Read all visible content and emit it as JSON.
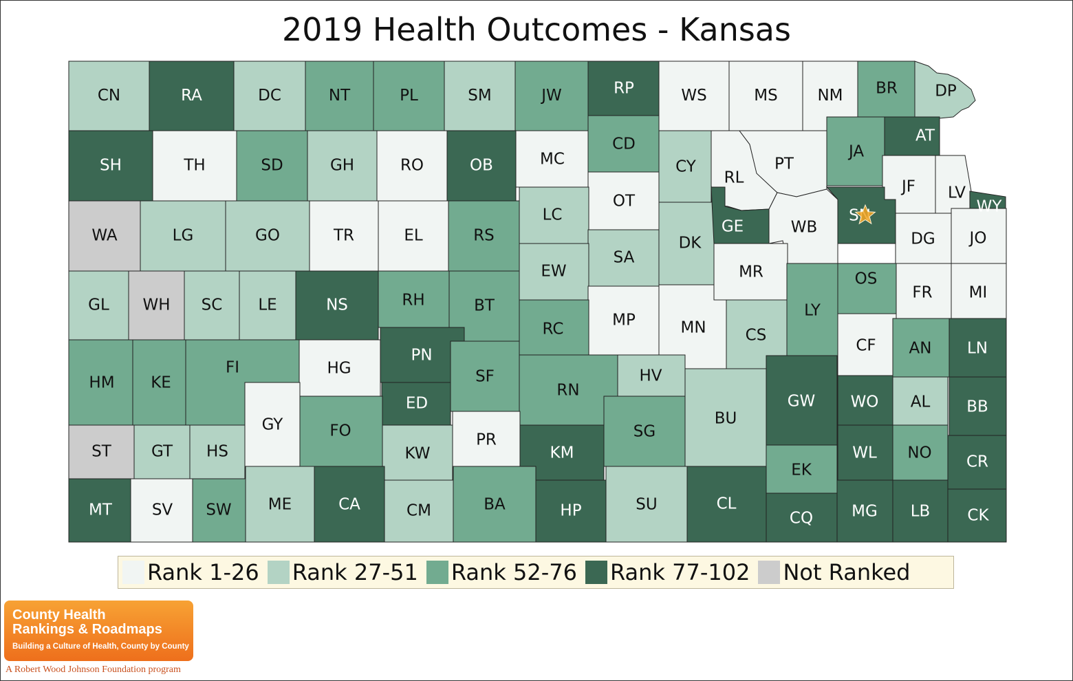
{
  "title": "2019 Health Outcomes - Kansas",
  "legend": [
    {
      "label": "Rank 1-26",
      "color": "#f1f5f3"
    },
    {
      "label": "Rank 27-51",
      "color": "#b3d3c4"
    },
    {
      "label": "Rank 52-76",
      "color": "#72ab90"
    },
    {
      "label": "Rank 77-102",
      "color": "#3b6853"
    },
    {
      "label": "Not Ranked",
      "color": "#cccccc"
    }
  ],
  "counties": [
    {
      "abbr": "CN",
      "tier": 2
    },
    {
      "abbr": "RA",
      "tier": 4
    },
    {
      "abbr": "DC",
      "tier": 2
    },
    {
      "abbr": "NT",
      "tier": 3
    },
    {
      "abbr": "PL",
      "tier": 3
    },
    {
      "abbr": "SM",
      "tier": 2
    },
    {
      "abbr": "JW",
      "tier": 3
    },
    {
      "abbr": "RP",
      "tier": 4
    },
    {
      "abbr": "WS",
      "tier": 1
    },
    {
      "abbr": "MS",
      "tier": 1
    },
    {
      "abbr": "NM",
      "tier": 1
    },
    {
      "abbr": "BR",
      "tier": 3
    },
    {
      "abbr": "DP",
      "tier": 2
    },
    {
      "abbr": "SH",
      "tier": 4
    },
    {
      "abbr": "TH",
      "tier": 1
    },
    {
      "abbr": "SD",
      "tier": 3
    },
    {
      "abbr": "GH",
      "tier": 2
    },
    {
      "abbr": "RO",
      "tier": 1
    },
    {
      "abbr": "OB",
      "tier": 4
    },
    {
      "abbr": "MC",
      "tier": 1
    },
    {
      "abbr": "CD",
      "tier": 3
    },
    {
      "abbr": "CY",
      "tier": 2
    },
    {
      "abbr": "RL",
      "tier": 1
    },
    {
      "abbr": "PT",
      "tier": 1
    },
    {
      "abbr": "JA",
      "tier": 3
    },
    {
      "abbr": "AT",
      "tier": 4
    },
    {
      "abbr": "JF",
      "tier": 1
    },
    {
      "abbr": "LV",
      "tier": 1
    },
    {
      "abbr": "WY",
      "tier": 4
    },
    {
      "abbr": "OT",
      "tier": 1
    },
    {
      "abbr": "WA",
      "tier": 0
    },
    {
      "abbr": "LG",
      "tier": 2
    },
    {
      "abbr": "GO",
      "tier": 2
    },
    {
      "abbr": "TR",
      "tier": 1
    },
    {
      "abbr": "EL",
      "tier": 1
    },
    {
      "abbr": "RS",
      "tier": 3
    },
    {
      "abbr": "LC",
      "tier": 2
    },
    {
      "abbr": "SA",
      "tier": 2
    },
    {
      "abbr": "DK",
      "tier": 2
    },
    {
      "abbr": "GE",
      "tier": 4
    },
    {
      "abbr": "WB",
      "tier": 1
    },
    {
      "abbr": "SN",
      "tier": 4
    },
    {
      "abbr": "DG",
      "tier": 1
    },
    {
      "abbr": "JO",
      "tier": 1
    },
    {
      "abbr": "GL",
      "tier": 2
    },
    {
      "abbr": "WH",
      "tier": 0
    },
    {
      "abbr": "SC",
      "tier": 2
    },
    {
      "abbr": "LE",
      "tier": 2
    },
    {
      "abbr": "NS",
      "tier": 4
    },
    {
      "abbr": "RH",
      "tier": 3
    },
    {
      "abbr": "BT",
      "tier": 3
    },
    {
      "abbr": "EW",
      "tier": 2
    },
    {
      "abbr": "MP",
      "tier": 1
    },
    {
      "abbr": "MN",
      "tier": 1
    },
    {
      "abbr": "MR",
      "tier": 1
    },
    {
      "abbr": "CS",
      "tier": 2
    },
    {
      "abbr": "LY",
      "tier": 3
    },
    {
      "abbr": "OS",
      "tier": 3
    },
    {
      "abbr": "FR",
      "tier": 1
    },
    {
      "abbr": "MI",
      "tier": 1
    },
    {
      "abbr": "RC",
      "tier": 3
    },
    {
      "abbr": "HM",
      "tier": 3
    },
    {
      "abbr": "KE",
      "tier": 3
    },
    {
      "abbr": "FI",
      "tier": 3
    },
    {
      "abbr": "HG",
      "tier": 1
    },
    {
      "abbr": "PN",
      "tier": 4
    },
    {
      "abbr": "SF",
      "tier": 3
    },
    {
      "abbr": "RN",
      "tier": 3
    },
    {
      "abbr": "HV",
      "tier": 2
    },
    {
      "abbr": "GW",
      "tier": 4
    },
    {
      "abbr": "CF",
      "tier": 1
    },
    {
      "abbr": "AN",
      "tier": 3
    },
    {
      "abbr": "LN",
      "tier": 4
    },
    {
      "abbr": "ED",
      "tier": 4
    },
    {
      "abbr": "BU",
      "tier": 2
    },
    {
      "abbr": "WO",
      "tier": 4
    },
    {
      "abbr": "AL",
      "tier": 2
    },
    {
      "abbr": "BB",
      "tier": 4
    },
    {
      "abbr": "ST",
      "tier": 0
    },
    {
      "abbr": "GT",
      "tier": 2
    },
    {
      "abbr": "HS",
      "tier": 2
    },
    {
      "abbr": "GY",
      "tier": 1
    },
    {
      "abbr": "FO",
      "tier": 3
    },
    {
      "abbr": "KW",
      "tier": 2
    },
    {
      "abbr": "PR",
      "tier": 1
    },
    {
      "abbr": "KM",
      "tier": 4
    },
    {
      "abbr": "SG",
      "tier": 3
    },
    {
      "abbr": "EK",
      "tier": 3
    },
    {
      "abbr": "WL",
      "tier": 4
    },
    {
      "abbr": "NO",
      "tier": 3
    },
    {
      "abbr": "CR",
      "tier": 4
    },
    {
      "abbr": "MT",
      "tier": 4
    },
    {
      "abbr": "SV",
      "tier": 1
    },
    {
      "abbr": "SW",
      "tier": 3
    },
    {
      "abbr": "ME",
      "tier": 2
    },
    {
      "abbr": "CA",
      "tier": 4
    },
    {
      "abbr": "CM",
      "tier": 2
    },
    {
      "abbr": "BA",
      "tier": 3
    },
    {
      "abbr": "HP",
      "tier": 4
    },
    {
      "abbr": "SU",
      "tier": 2
    },
    {
      "abbr": "CL",
      "tier": 4
    },
    {
      "abbr": "CQ",
      "tier": 4
    },
    {
      "abbr": "MG",
      "tier": 4
    },
    {
      "abbr": "LB",
      "tier": 4
    },
    {
      "abbr": "CK",
      "tier": 4
    }
  ],
  "marker": {
    "county": "SN",
    "symbol": "star",
    "color": "#f5a623"
  },
  "logo": {
    "line1": "County Health",
    "line2": "Rankings & Roadmaps",
    "tagline": "Building a Culture of Health, County by County",
    "program": "A Robert Wood Johnson Foundation program"
  }
}
